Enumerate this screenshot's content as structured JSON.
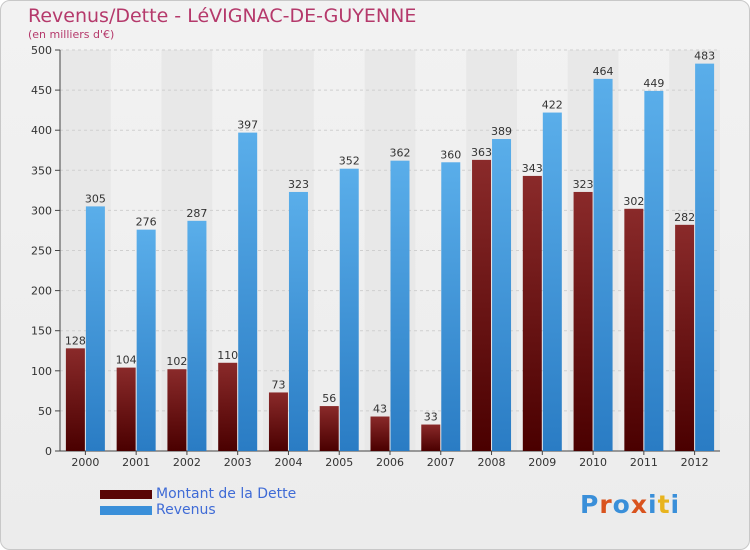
{
  "header": {
    "title": "Revenus/Dette - LéVIGNAC-DE-GUYENNE",
    "subtitle": "(en milliers d'€)"
  },
  "chart_data": {
    "type": "bar",
    "categories": [
      "2000",
      "2001",
      "2002",
      "2003",
      "2004",
      "2005",
      "2006",
      "2007",
      "2008",
      "2009",
      "2010",
      "2011",
      "2012"
    ],
    "series": [
      {
        "name": "Montant de la Dette",
        "color": "#6b0f0f",
        "values": [
          128,
          104,
          102,
          110,
          73,
          56,
          43,
          33,
          363,
          343,
          323,
          302,
          282
        ]
      },
      {
        "name": "Revenus",
        "color": "#3a8fd9",
        "values": [
          305,
          276,
          287,
          397,
          323,
          352,
          362,
          360,
          389,
          422,
          464,
          449,
          483
        ]
      }
    ],
    "ylim": [
      0,
      500
    ],
    "yticks": [
      0,
      50,
      100,
      150,
      200,
      250,
      300,
      350,
      400,
      450,
      500
    ],
    "grid": true
  },
  "logo": {
    "text": "Proxiti",
    "colors": [
      "#3a8fd9",
      "#d9531e",
      "#3a8fd9",
      "#d9531e",
      "#3a8fd9",
      "#e8b41e",
      "#3a8fd9"
    ]
  }
}
